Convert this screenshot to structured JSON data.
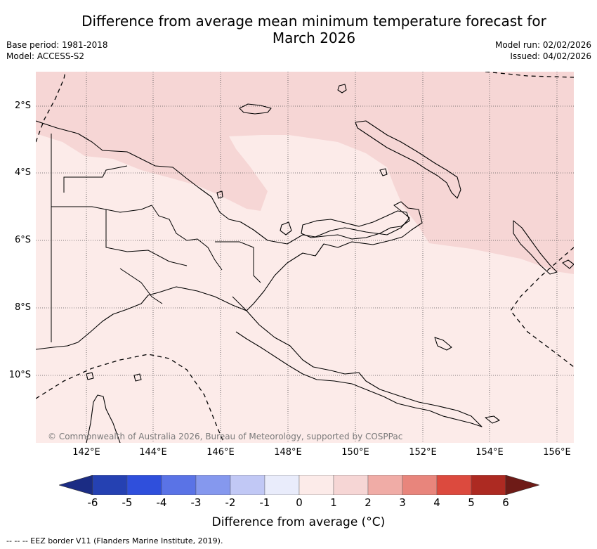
{
  "header": {
    "title_line1": "Difference from average mean minimum temperature forecast for",
    "title_line2": "March 2026",
    "base_period": "Base period: 1981-2018",
    "model": "Model: ACCESS-S2",
    "model_run": "Model run: 02/02/2026",
    "issued": "Issued: 04/02/2026"
  },
  "map": {
    "lon_labels": [
      "142°E",
      "144°E",
      "146°E",
      "148°E",
      "150°E",
      "152°E",
      "154°E",
      "156°E"
    ],
    "lat_labels": [
      "2°S",
      "4°S",
      "6°S",
      "8°S",
      "10°S"
    ],
    "copyright": "© Commonwealth of Australia 2026, Bureau of Meteorology, supported by COSPPac",
    "colors": {
      "band_0_1": "#fcebe9",
      "band_1_2": "#f6d6d5",
      "coast": "#000000",
      "grid": "#555555"
    }
  },
  "colorbar": {
    "ticks": [
      "-6",
      "-5",
      "-4",
      "-3",
      "-2",
      "-1",
      "0",
      "1",
      "2",
      "3",
      "4",
      "5",
      "6"
    ],
    "label": "Difference from average (°C)",
    "colors": [
      "#1b2c84",
      "#2541b2",
      "#2f4fdc",
      "#5a73e6",
      "#8598ee",
      "#c1c8f5",
      "#e9ecfb",
      "#fcebe9",
      "#f6d6d5",
      "#f0aca6",
      "#e8857c",
      "#dc4a3e",
      "#ad2a22",
      "#6e1b17"
    ]
  },
  "footer": {
    "eez_legend": "--  --  -- EEZ border V11 (Flanders Marine Institute, 2019)."
  }
}
